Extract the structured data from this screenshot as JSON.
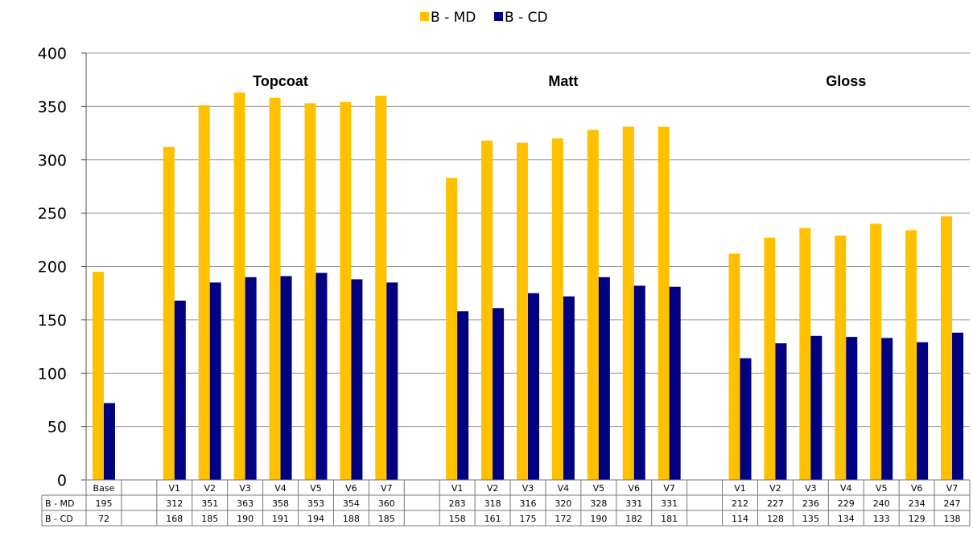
{
  "chart_data": {
    "type": "bar",
    "title": "",
    "xlabel": "",
    "ylabel": "",
    "ylim": [
      0,
      400
    ],
    "yticks": [
      0,
      50,
      100,
      150,
      200,
      250,
      300,
      350,
      400
    ],
    "grid": true,
    "legend_position": "top-center",
    "categories": [
      "Base",
      "",
      "V1",
      "V2",
      "V3",
      "V4",
      "V5",
      "V6",
      "V7",
      "",
      "V1",
      "V2",
      "V3",
      "V4",
      "V5",
      "V6",
      "V7",
      "",
      "V1",
      "V2",
      "V3",
      "V4",
      "V5",
      "V6",
      "V7"
    ],
    "series": [
      {
        "name": "B - MD",
        "color": "#FFC000",
        "values": [
          195,
          null,
          312,
          351,
          363,
          358,
          353,
          354,
          360,
          null,
          283,
          318,
          316,
          320,
          328,
          331,
          331,
          null,
          212,
          227,
          236,
          229,
          240,
          234,
          247
        ]
      },
      {
        "name": "B - CD",
        "color": "#000080",
        "values": [
          72,
          null,
          168,
          185,
          190,
          191,
          194,
          188,
          185,
          null,
          158,
          161,
          175,
          172,
          190,
          182,
          181,
          null,
          114,
          128,
          135,
          134,
          133,
          129,
          138
        ]
      }
    ],
    "group_labels": [
      {
        "text": "Topcoat",
        "category_index": 5
      },
      {
        "text": "Matt",
        "category_index": 13
      },
      {
        "text": "Gloss",
        "category_index": 21
      }
    ],
    "data_table": true
  }
}
